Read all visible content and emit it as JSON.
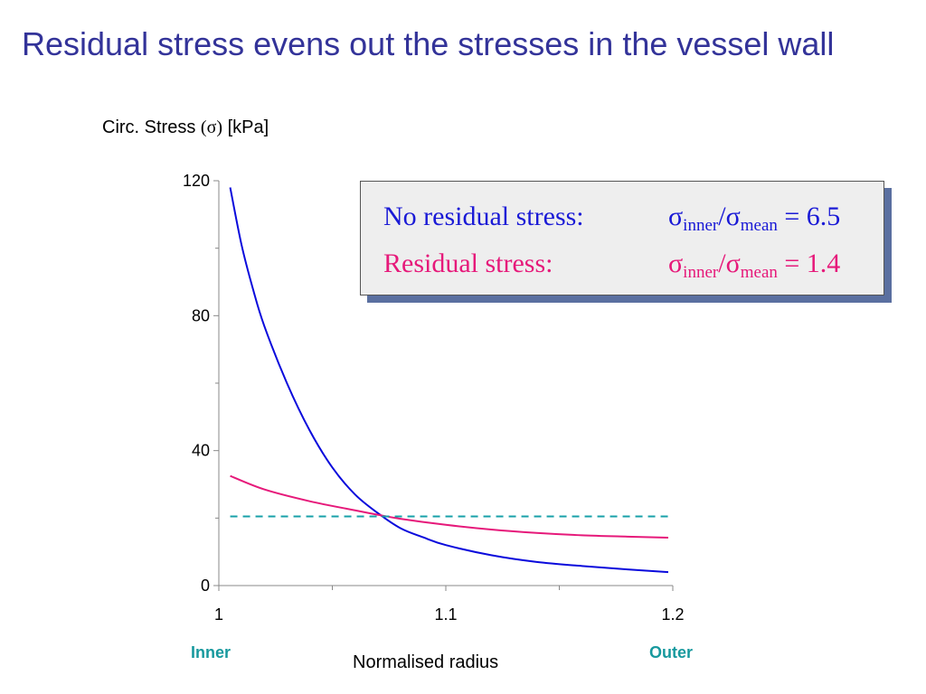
{
  "title": "Residual stress evens out the stresses in the vessel wall",
  "legend_box": {
    "rows": [
      {
        "label": "No residual stress:",
        "sigma": "σ",
        "sub1": "inner",
        "slash": "/",
        "sigma2": "σ",
        "sub2": "mean",
        "value": " = 6.5",
        "color": "#1a1ad6"
      },
      {
        "label": "Residual stress:",
        "sigma": "σ",
        "sub1": "inner",
        "slash": "/",
        "sigma2": "σ",
        "sub2": "mean",
        "value": " = 1.4",
        "color": "#e6197a"
      }
    ]
  },
  "end_labels": {
    "inner": "Inner",
    "outer": "Outer",
    "color": "#17999e"
  },
  "chart_data": {
    "type": "line",
    "title": "",
    "ylabel_text": "Circ. Stress ",
    "ylabel_sym": "(σ)",
    "ylabel_unit": " [kPa]",
    "xlabel": "Normalised radius",
    "xlim": [
      1.0,
      1.2
    ],
    "ylim": [
      0,
      120
    ],
    "xticks": [
      {
        "v": 1.0,
        "label": "1"
      },
      {
        "v": 1.1,
        "label": "1.1"
      },
      {
        "v": 1.2,
        "label": "1.2"
      }
    ],
    "xminor": [
      1.05,
      1.15
    ],
    "yticks": [
      {
        "v": 0,
        "label": "0"
      },
      {
        "v": 40,
        "label": "40"
      },
      {
        "v": 80,
        "label": "80"
      },
      {
        "v": 120,
        "label": "120"
      }
    ],
    "yminor": [
      20,
      60,
      100
    ],
    "grid": false,
    "series": [
      {
        "key": "no-residual",
        "color": "#0a0adc",
        "dashed": false,
        "x": [
          1.005,
          1.01,
          1.015,
          1.02,
          1.03,
          1.04,
          1.05,
          1.06,
          1.07,
          1.08,
          1.09,
          1.1,
          1.12,
          1.14,
          1.16,
          1.18,
          1.198
        ],
        "y": [
          118,
          101,
          88,
          77,
          60,
          46,
          35,
          27,
          21.5,
          17,
          14.3,
          12,
          9,
          7,
          5.8,
          4.8,
          4
        ]
      },
      {
        "key": "residual",
        "color": "#e6197a",
        "dashed": false,
        "x": [
          1.005,
          1.02,
          1.04,
          1.06,
          1.07,
          1.08,
          1.1,
          1.12,
          1.14,
          1.16,
          1.18,
          1.198
        ],
        "y": [
          32.5,
          28.5,
          25,
          22.3,
          21,
          19.8,
          18,
          16.6,
          15.6,
          14.9,
          14.5,
          14.2
        ]
      },
      {
        "key": "mean",
        "color": "#17a0a8",
        "dashed": true,
        "x": [
          1.005,
          1.198
        ],
        "y": [
          20.5,
          20.5
        ]
      }
    ]
  }
}
